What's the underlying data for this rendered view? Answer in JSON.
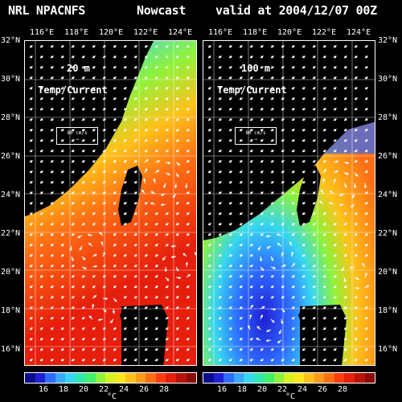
{
  "header": {
    "left": "NRL NPACNFS",
    "mid": "Nowcast",
    "right": "valid at 2004/12/07 00Z"
  },
  "panels": [
    {
      "depth_label": "20 m",
      "field_label": "Temp/Current",
      "scale_label": "80 cm/s",
      "lon_ticks": [
        "116°E",
        "118°E",
        "120°E",
        "122°E",
        "124°E"
      ],
      "lat_ticks": [
        "32°N",
        "30°N",
        "28°N",
        "26°N",
        "24°N",
        "22°N",
        "20°N",
        "18°N",
        "16°N"
      ],
      "colorbar_ticks": [
        "16",
        "18",
        "20",
        "22",
        "24",
        "26",
        "28"
      ],
      "colorbar_unit": "°C"
    },
    {
      "depth_label": "100 m",
      "field_label": "Temp/Current",
      "scale_label": "80 cm/s",
      "lon_ticks": [
        "116°E",
        "118°E",
        "120°E",
        "122°E",
        "124°E"
      ],
      "lat_ticks": [
        "32°N",
        "30°N",
        "28°N",
        "26°N",
        "24°N",
        "22°N",
        "20°N",
        "18°N",
        "16°N"
      ],
      "colorbar_ticks": [
        "16",
        "18",
        "20",
        "22",
        "24",
        "26",
        "28"
      ],
      "colorbar_unit": "°C"
    }
  ],
  "colors": {
    "colorbar": [
      "#0c0c8c",
      "#1f1fd4",
      "#2e6bff",
      "#3aa8ff",
      "#36d6f0",
      "#2ee8b0",
      "#42f06a",
      "#8ef23a",
      "#d6f21e",
      "#ffe61a",
      "#ffc21a",
      "#ff9a1a",
      "#ff6e14",
      "#ff3c10",
      "#e61e0c",
      "#b8120a",
      "#8a0c0a"
    ]
  }
}
